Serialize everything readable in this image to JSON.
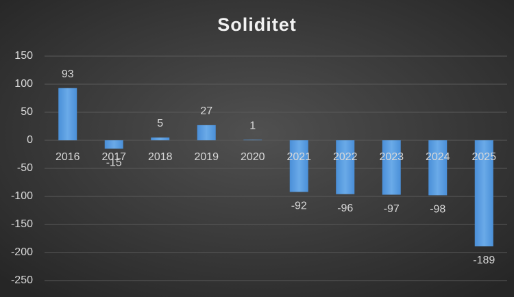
{
  "chart_data": {
    "type": "bar",
    "title": "Soliditet",
    "categories": [
      "2016",
      "2017",
      "2018",
      "2019",
      "2020",
      "2021",
      "2022",
      "2023",
      "2024",
      "2025"
    ],
    "values": [
      93,
      -15,
      5,
      27,
      1,
      -92,
      -96,
      -97,
      -98,
      -189
    ],
    "color": "#5b9bd5",
    "ylim": [
      -250,
      150
    ],
    "yticks": [
      -250,
      -200,
      -150,
      -100,
      -50,
      0,
      50,
      100,
      150
    ],
    "grid": true
  }
}
